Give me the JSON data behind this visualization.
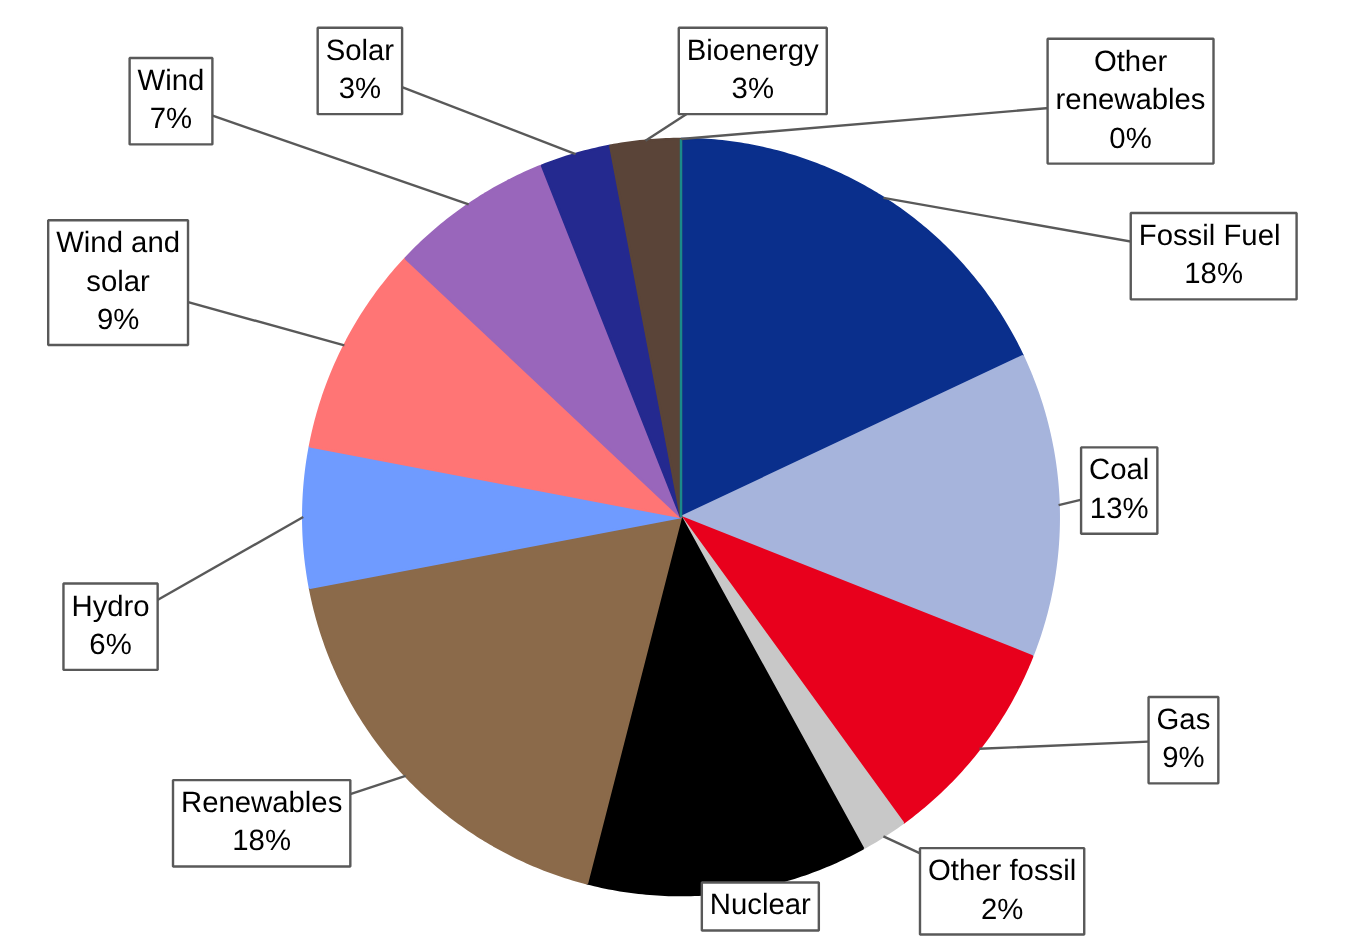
{
  "chart_data": {
    "type": "pie",
    "categories": [
      "Fossil  Fuel",
      "Coal",
      "Gas",
      "Other fossil",
      "Nuclear",
      "Renewables",
      "Hydro",
      "Wind and solar",
      "Wind",
      "Solar",
      "Bioenergy",
      "Other renewables"
    ],
    "values": [
      18,
      13,
      9,
      2,
      12,
      18,
      6,
      9,
      7,
      3,
      3,
      0
    ],
    "value_labels": [
      "18%",
      "13%",
      "9%",
      "2%",
      null,
      "18%",
      "6%",
      "9%",
      "7%",
      "3%",
      "3%",
      "0%"
    ],
    "colors": [
      "#0a2f8c",
      "#a6b4dc",
      "#e8001c",
      "#c8c8c8",
      "#000000",
      "#8b6a4a",
      "#6f9bff",
      "#ff7575",
      "#9966bb",
      "#24298f",
      "#5a4438",
      "#1a8a8a"
    ]
  }
}
